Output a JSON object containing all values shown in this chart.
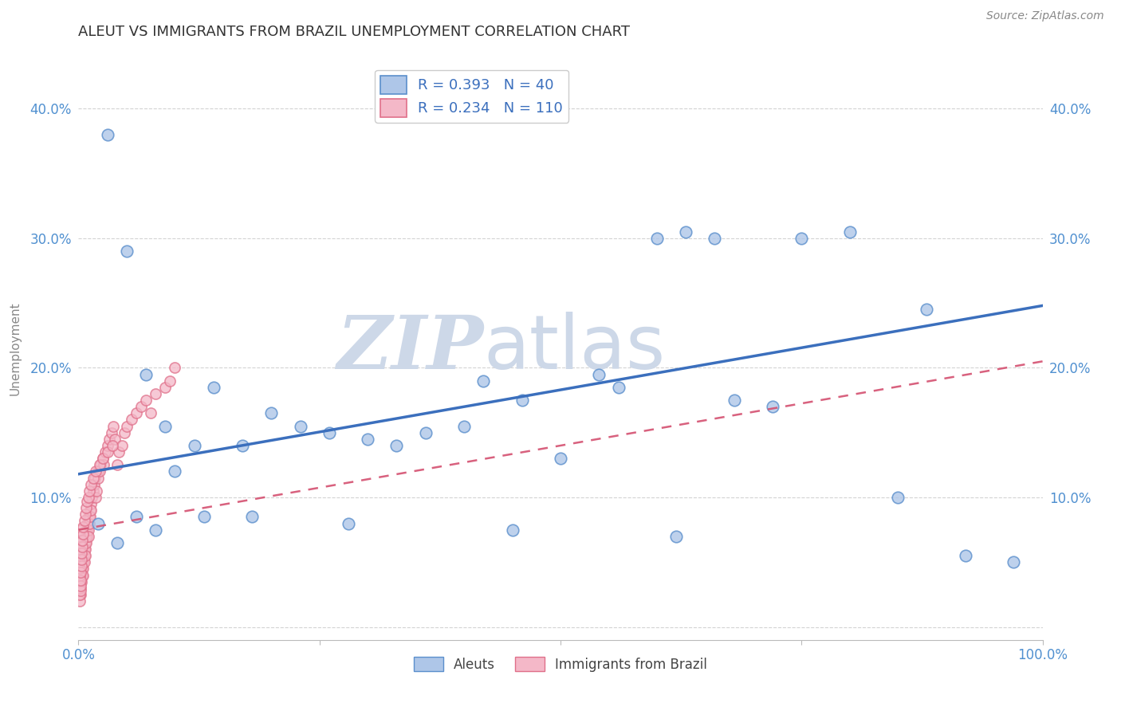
{
  "title": "ALEUT VS IMMIGRANTS FROM BRAZIL UNEMPLOYMENT CORRELATION CHART",
  "source": "Source: ZipAtlas.com",
  "ylabel": "Unemployment",
  "y_ticks": [
    0.0,
    0.1,
    0.2,
    0.3,
    0.4
  ],
  "y_tick_labels": [
    "",
    "10.0%",
    "20.0%",
    "30.0%",
    "40.0%"
  ],
  "x_range": [
    0.0,
    1.0
  ],
  "y_range": [
    -0.01,
    0.44
  ],
  "aleut_R": 0.393,
  "aleut_N": 40,
  "brazil_R": 0.234,
  "brazil_N": 110,
  "aleut_color": "#aec6e8",
  "aleut_edge_color": "#5b8fcc",
  "aleut_line_color": "#3b6fbd",
  "brazil_color": "#f4b8c8",
  "brazil_edge_color": "#e0708a",
  "brazil_line_color": "#d45070",
  "background_color": "#ffffff",
  "grid_color": "#c8c8c8",
  "watermark_color": "#cdd8e8",
  "title_color": "#333333",
  "axis_label_color": "#5090d0",
  "legend_label1": "Aleuts",
  "legend_label2": "Immigrants from Brazil",
  "aleut_line_x0": 0.0,
  "aleut_line_y0": 0.118,
  "aleut_line_x1": 1.0,
  "aleut_line_y1": 0.248,
  "brazil_line_x0": 0.0,
  "brazil_line_y0": 0.075,
  "brazil_line_x1": 1.0,
  "brazil_line_y1": 0.205,
  "aleut_scatter_x": [
    0.03,
    0.05,
    0.07,
    0.09,
    0.1,
    0.12,
    0.14,
    0.17,
    0.2,
    0.23,
    0.26,
    0.3,
    0.33,
    0.36,
    0.4,
    0.42,
    0.46,
    0.5,
    0.54,
    0.56,
    0.6,
    0.63,
    0.66,
    0.68,
    0.72,
    0.75,
    0.8,
    0.85,
    0.88,
    0.92,
    0.02,
    0.04,
    0.06,
    0.08,
    0.13,
    0.18,
    0.28,
    0.45,
    0.97,
    0.62
  ],
  "aleut_scatter_y": [
    0.38,
    0.29,
    0.195,
    0.155,
    0.12,
    0.14,
    0.185,
    0.14,
    0.165,
    0.155,
    0.15,
    0.145,
    0.14,
    0.15,
    0.155,
    0.19,
    0.175,
    0.13,
    0.195,
    0.185,
    0.3,
    0.305,
    0.3,
    0.175,
    0.17,
    0.3,
    0.305,
    0.1,
    0.245,
    0.055,
    0.08,
    0.065,
    0.085,
    0.075,
    0.085,
    0.085,
    0.08,
    0.075,
    0.05,
    0.07
  ],
  "brazil_scatter_x": [
    0.002,
    0.002,
    0.002,
    0.002,
    0.002,
    0.003,
    0.003,
    0.003,
    0.003,
    0.004,
    0.004,
    0.004,
    0.004,
    0.005,
    0.005,
    0.005,
    0.005,
    0.005,
    0.006,
    0.006,
    0.006,
    0.006,
    0.007,
    0.007,
    0.007,
    0.007,
    0.008,
    0.008,
    0.008,
    0.009,
    0.009,
    0.009,
    0.01,
    0.01,
    0.01,
    0.01,
    0.011,
    0.011,
    0.012,
    0.012,
    0.013,
    0.013,
    0.014,
    0.015,
    0.016,
    0.017,
    0.018,
    0.019,
    0.02,
    0.02,
    0.022,
    0.023,
    0.025,
    0.026,
    0.028,
    0.03,
    0.032,
    0.034,
    0.036,
    0.038,
    0.04,
    0.042,
    0.045,
    0.048,
    0.05,
    0.055,
    0.06,
    0.065,
    0.07,
    0.075,
    0.08,
    0.09,
    0.095,
    0.1,
    0.001,
    0.001,
    0.001,
    0.001,
    0.001,
    0.001,
    0.001,
    0.001,
    0.001,
    0.001,
    0.001,
    0.001,
    0.002,
    0.002,
    0.002,
    0.002,
    0.003,
    0.003,
    0.003,
    0.004,
    0.004,
    0.005,
    0.005,
    0.006,
    0.007,
    0.008,
    0.009,
    0.01,
    0.011,
    0.013,
    0.015,
    0.018,
    0.022,
    0.025,
    0.03,
    0.035
  ],
  "brazil_scatter_y": [
    0.045,
    0.04,
    0.035,
    0.03,
    0.025,
    0.05,
    0.045,
    0.04,
    0.035,
    0.055,
    0.05,
    0.045,
    0.04,
    0.06,
    0.055,
    0.05,
    0.045,
    0.04,
    0.065,
    0.06,
    0.055,
    0.05,
    0.07,
    0.065,
    0.06,
    0.055,
    0.075,
    0.07,
    0.065,
    0.08,
    0.075,
    0.07,
    0.085,
    0.08,
    0.075,
    0.07,
    0.085,
    0.08,
    0.09,
    0.085,
    0.095,
    0.09,
    0.1,
    0.105,
    0.11,
    0.115,
    0.1,
    0.105,
    0.12,
    0.115,
    0.12,
    0.125,
    0.13,
    0.125,
    0.135,
    0.14,
    0.145,
    0.15,
    0.155,
    0.145,
    0.125,
    0.135,
    0.14,
    0.15,
    0.155,
    0.16,
    0.165,
    0.17,
    0.175,
    0.165,
    0.18,
    0.185,
    0.19,
    0.2,
    0.02,
    0.025,
    0.03,
    0.035,
    0.04,
    0.045,
    0.05,
    0.055,
    0.06,
    0.065,
    0.07,
    0.075,
    0.028,
    0.032,
    0.036,
    0.042,
    0.047,
    0.052,
    0.057,
    0.062,
    0.067,
    0.072,
    0.077,
    0.082,
    0.087,
    0.092,
    0.097,
    0.1,
    0.105,
    0.11,
    0.115,
    0.12,
    0.125,
    0.13,
    0.135,
    0.14
  ]
}
